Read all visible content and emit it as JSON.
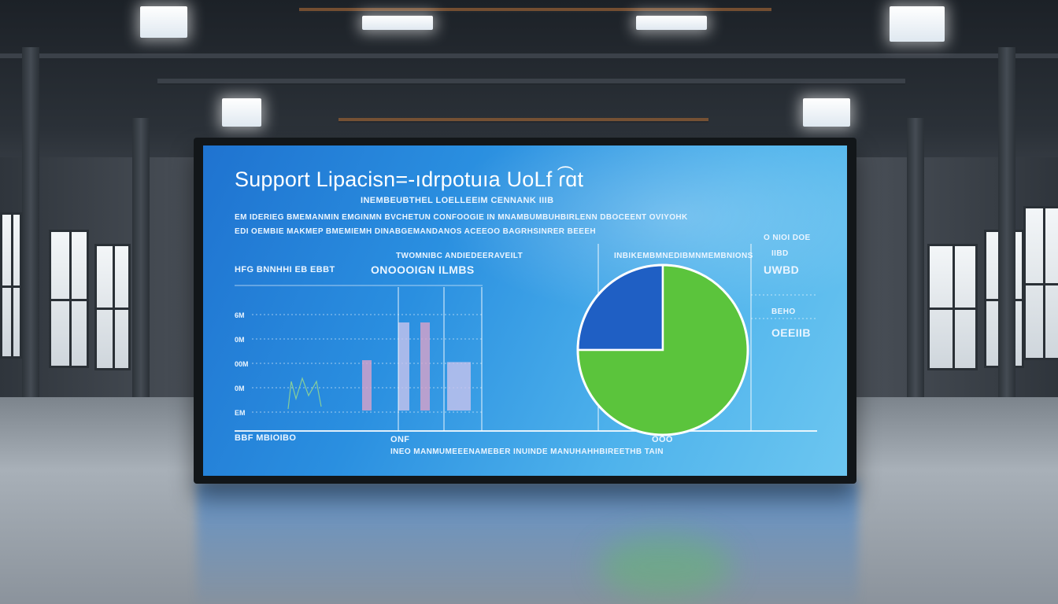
{
  "screen": {
    "title": "Support Lipacisn=-ıdrpotuıa UoLf ɾ͡ɑt",
    "subtitle": "INEMBEUBTHEL LOELLEEIM CENNANK IIIB",
    "desc_line1": "EM IDERIEG BMEMANMIN EMGINMN BVCHETUN CONFOOGIE IN MNAMBUMBUHBIRLENN DBOCEENT OVIYOHK",
    "desc_line2": "EDI OEMBIE MAKMEP BMEMIEMH DINABGEMANDANOS ACEEOO BAGRHSINRER BEEEH",
    "left_label": "HFG BNNHHI EB EBBT",
    "mid_label_1": "TWOMNIBC ANDIEDEERAVEILT",
    "mid_label_2": "ONOOOIGN ILMBS",
    "right_label": "INBIKEMBMNEDIBMNMEMBNIONS",
    "far_right_1": "O NIOI DOE",
    "far_right_2": "IIBD",
    "far_right_3": "UWBD",
    "far_right_4": "BEHO",
    "far_right_5": "OEEIIB",
    "bottom_left": "BBF MBIOIBO",
    "bottom_mid": "ONF",
    "bottom_right_val": "OOO",
    "bottom_caption": "INEO MANMUMEEENAMEBER INUINDE MANUHAHHBIREETHB TAIN"
  },
  "chart_data": [
    {
      "type": "bar",
      "ylabel_ticks": [
        "6M",
        "0M",
        "00M",
        "0M",
        "EM"
      ],
      "series": [
        {
          "values": [
            2,
            3.5,
            3.5,
            3.5
          ]
        }
      ]
    },
    {
      "type": "pie",
      "values": [
        25,
        75
      ],
      "colors": [
        "#1f5fc4",
        "#5bc43c"
      ]
    }
  ],
  "colors": {
    "screen_blue": "#2a8fe0",
    "pie_blue": "#1f5fc4",
    "pie_green": "#5bc43c",
    "bar_pink": "#d9a3c9",
    "bar_lavender": "#c8c3ec"
  }
}
